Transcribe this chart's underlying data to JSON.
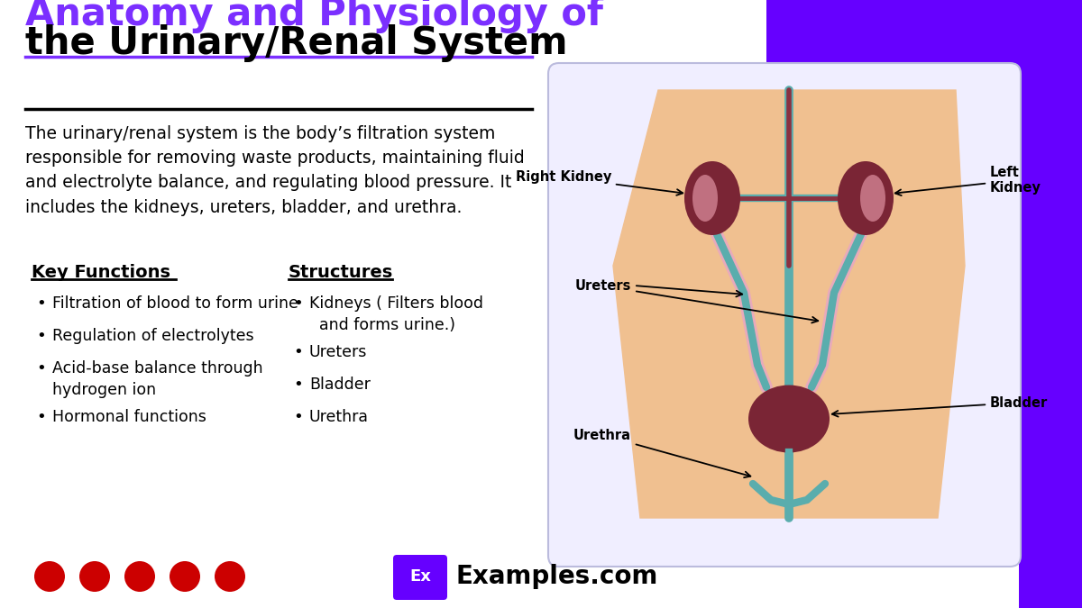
{
  "title_line1": "Anatomy and Physiology of",
  "title_line2": "the Urinary/Renal System",
  "title_line1_color": "#7B2FFF",
  "title_line2_color": "#000000",
  "bg_color": "#FFFFFF",
  "purple_color": "#6600FF",
  "body_text": "The urinary/renal system is the body’s filtration system\nresponsible for removing waste products, maintaining fluid\nand electrolyte balance, and regulating blood pressure. It\nincludes the kidneys, ureters, bladder, and urethra.",
  "key_functions_title": "Key Functions",
  "key_functions": [
    "Filtration of blood to form urine",
    "Regulation of electrolytes",
    "Acid-base balance through\nhydrogen ion",
    "Hormonal functions"
  ],
  "structures_title": "Structures",
  "structures": [
    "Kidneys ( Filters blood\n  and forms urine.)",
    "Ureters",
    "Bladder",
    "Urethra"
  ],
  "diagram_bg": "#F0EEFF",
  "torso_color": "#F0C090",
  "kidney_dark": "#7A2535",
  "kidney_inner": "#C07080",
  "vessel_teal": "#5AADAD",
  "vessel_red": "#8B3040",
  "pink_ureter": "#E8AABB",
  "bladder_color": "#7A2535",
  "logo_bg": "#6600FF",
  "logo_text": "Ex",
  "site_text": "Examples.com",
  "diagram_labels": {
    "right_kidney": "Right Kidney",
    "left_kidney": "Left\nKidney",
    "ureters": "Ureters",
    "urethra": "Urethra",
    "bladder": "Bladder"
  }
}
